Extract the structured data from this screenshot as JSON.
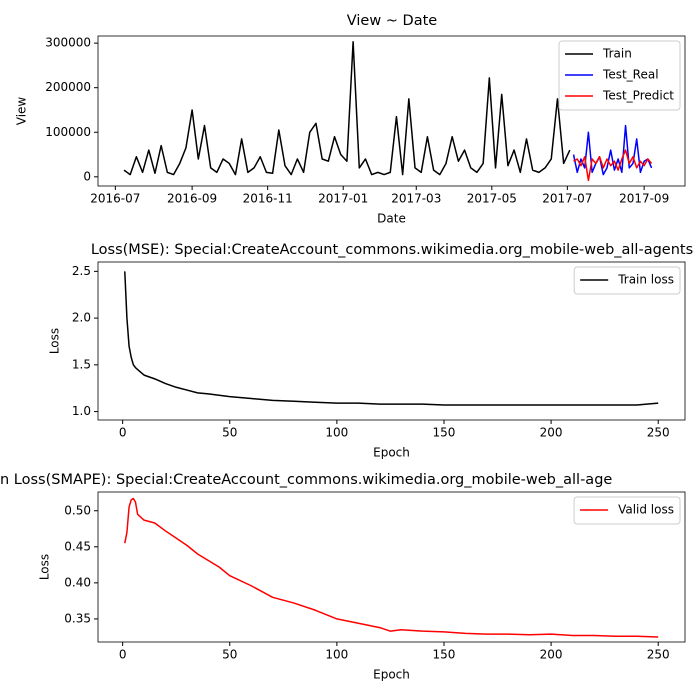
{
  "chart_data": [
    {
      "type": "line",
      "title": "View ~ Date",
      "xlabel": "Date",
      "ylabel": "View",
      "legend": "upper right",
      "xlim": [
        -14,
        460
      ],
      "ylim": [
        -20600,
        316000
      ],
      "xticks": [
        {
          "value": 0,
          "label": "2016-07"
        },
        {
          "value": 62,
          "label": "2016-09"
        },
        {
          "value": 123,
          "label": "2016-11"
        },
        {
          "value": 184,
          "label": "2017-01"
        },
        {
          "value": 243,
          "label": "2017-03"
        },
        {
          "value": 304,
          "label": "2017-05"
        },
        {
          "value": 365,
          "label": "2017-07"
        },
        {
          "value": 427,
          "label": "2017-09"
        }
      ],
      "yticks": [
        0,
        100000,
        200000,
        300000
      ],
      "series": [
        {
          "name": "Train",
          "color": "#000000",
          "x": [
            7,
            12,
            17,
            22,
            27,
            32,
            37,
            42,
            47,
            52,
            57,
            62,
            67,
            72,
            77,
            82,
            87,
            92,
            97,
            102,
            107,
            112,
            117,
            122,
            127,
            132,
            137,
            142,
            147,
            152,
            157,
            162,
            167,
            172,
            177,
            182,
            187,
            192,
            197,
            202,
            207,
            212,
            217,
            222,
            227,
            232,
            237,
            242,
            247,
            252,
            257,
            262,
            267,
            272,
            277,
            282,
            287,
            292,
            297,
            302,
            307,
            312,
            317,
            322,
            327,
            332,
            337,
            342,
            347,
            352,
            357,
            362,
            367
          ],
          "values": [
            15000,
            5000,
            45000,
            10000,
            60000,
            8000,
            70000,
            10000,
            5000,
            30000,
            65000,
            150000,
            40000,
            115000,
            20000,
            10000,
            40000,
            30000,
            5000,
            85000,
            10000,
            20000,
            45000,
            10000,
            8000,
            105000,
            25000,
            5000,
            40000,
            10000,
            100000,
            120000,
            40000,
            35000,
            90000,
            50000,
            35000,
            303000,
            20000,
            40000,
            5000,
            10000,
            5000,
            10000,
            135000,
            5000,
            175000,
            20000,
            10000,
            90000,
            15000,
            5000,
            30000,
            90000,
            35000,
            60000,
            20000,
            10000,
            30000,
            222000,
            20000,
            185000,
            25000,
            60000,
            10000,
            85000,
            15000,
            10000,
            20000,
            40000,
            175000,
            30000,
            60000
          ]
        },
        {
          "name": "Test_Real",
          "color": "#0000ff",
          "x": [
            370,
            373,
            376,
            379,
            382,
            385,
            388,
            391,
            394,
            397,
            400,
            403,
            406,
            409,
            412,
            415,
            418,
            421,
            424,
            427,
            430,
            433
          ],
          "values": [
            50000,
            10000,
            40000,
            20000,
            100000,
            10000,
            30000,
            45000,
            5000,
            20000,
            60000,
            15000,
            40000,
            10000,
            115000,
            20000,
            30000,
            85000,
            10000,
            35000,
            40000,
            20000
          ]
        },
        {
          "name": "Test_Predict",
          "color": "#ff0000",
          "x": [
            370,
            373,
            376,
            379,
            382,
            385,
            388,
            391,
            394,
            397,
            400,
            403,
            406,
            409,
            412,
            415,
            418,
            421,
            424,
            427,
            430,
            433
          ],
          "values": [
            35000,
            40000,
            25000,
            45000,
            -8000,
            40000,
            30000,
            45000,
            20000,
            40000,
            25000,
            35000,
            15000,
            40000,
            60000,
            30000,
            45000,
            20000,
            35000,
            25000,
            40000,
            30000
          ]
        }
      ]
    },
    {
      "type": "line",
      "title": "Loss(MSE): Special:CreateAccount_commons.wikimedia.org_mobile-web_all-agents",
      "xlabel": "Epoch",
      "ylabel": "Loss",
      "legend": "upper right",
      "xlim": [
        -11.5,
        262.5
      ],
      "ylim": [
        0.91,
        2.6
      ],
      "xticks": [
        0,
        50,
        100,
        150,
        200,
        250
      ],
      "yticks": [
        {
          "value": 1,
          "label": "1.0"
        },
        1.5,
        {
          "value": 2,
          "label": "2.0"
        },
        2.5
      ],
      "series": [
        {
          "name": "Train loss",
          "color": "#000000",
          "x": [
            1,
            2,
            3,
            4,
            5,
            6,
            8,
            10,
            15,
            20,
            25,
            30,
            35,
            40,
            50,
            60,
            70,
            80,
            90,
            100,
            110,
            120,
            130,
            140,
            150,
            160,
            170,
            180,
            190,
            200,
            210,
            220,
            230,
            240,
            250
          ],
          "values": [
            2.5,
            2.0,
            1.7,
            1.58,
            1.5,
            1.47,
            1.43,
            1.39,
            1.35,
            1.3,
            1.26,
            1.23,
            1.2,
            1.19,
            1.16,
            1.14,
            1.12,
            1.11,
            1.1,
            1.09,
            1.09,
            1.08,
            1.08,
            1.08,
            1.07,
            1.07,
            1.07,
            1.07,
            1.07,
            1.07,
            1.07,
            1.07,
            1.07,
            1.07,
            1.09
          ]
        }
      ]
    },
    {
      "type": "line",
      "title": "n Loss(SMAPE): Special:CreateAccount_commons.wikimedia.org_mobile-web_all-age",
      "xlabel": "Epoch",
      "ylabel": "Loss",
      "legend": "upper right",
      "xlim": [
        -11.5,
        262.5
      ],
      "ylim": [
        0.318,
        0.526
      ],
      "xticks": [
        0,
        50,
        100,
        150,
        200,
        250
      ],
      "yticks": [
        0.35,
        {
          "value": 0.4,
          "label": "0.40"
        },
        0.45,
        {
          "value": 0.5,
          "label": "0.50"
        }
      ],
      "series": [
        {
          "name": "Valid loss",
          "color": "#ff0000",
          "x": [
            1,
            2,
            3,
            4,
            5,
            6,
            7,
            10,
            15,
            20,
            25,
            30,
            35,
            40,
            45,
            50,
            60,
            70,
            80,
            90,
            100,
            110,
            120,
            125,
            130,
            140,
            150,
            160,
            170,
            180,
            190,
            200,
            210,
            220,
            230,
            240,
            250
          ],
          "values": [
            0.455,
            0.47,
            0.505,
            0.515,
            0.517,
            0.512,
            0.495,
            0.487,
            0.483,
            0.472,
            0.462,
            0.452,
            0.44,
            0.431,
            0.422,
            0.41,
            0.396,
            0.38,
            0.372,
            0.362,
            0.35,
            0.344,
            0.338,
            0.333,
            0.335,
            0.333,
            0.332,
            0.33,
            0.329,
            0.329,
            0.328,
            0.329,
            0.327,
            0.327,
            0.326,
            0.326,
            0.325
          ]
        }
      ]
    }
  ]
}
